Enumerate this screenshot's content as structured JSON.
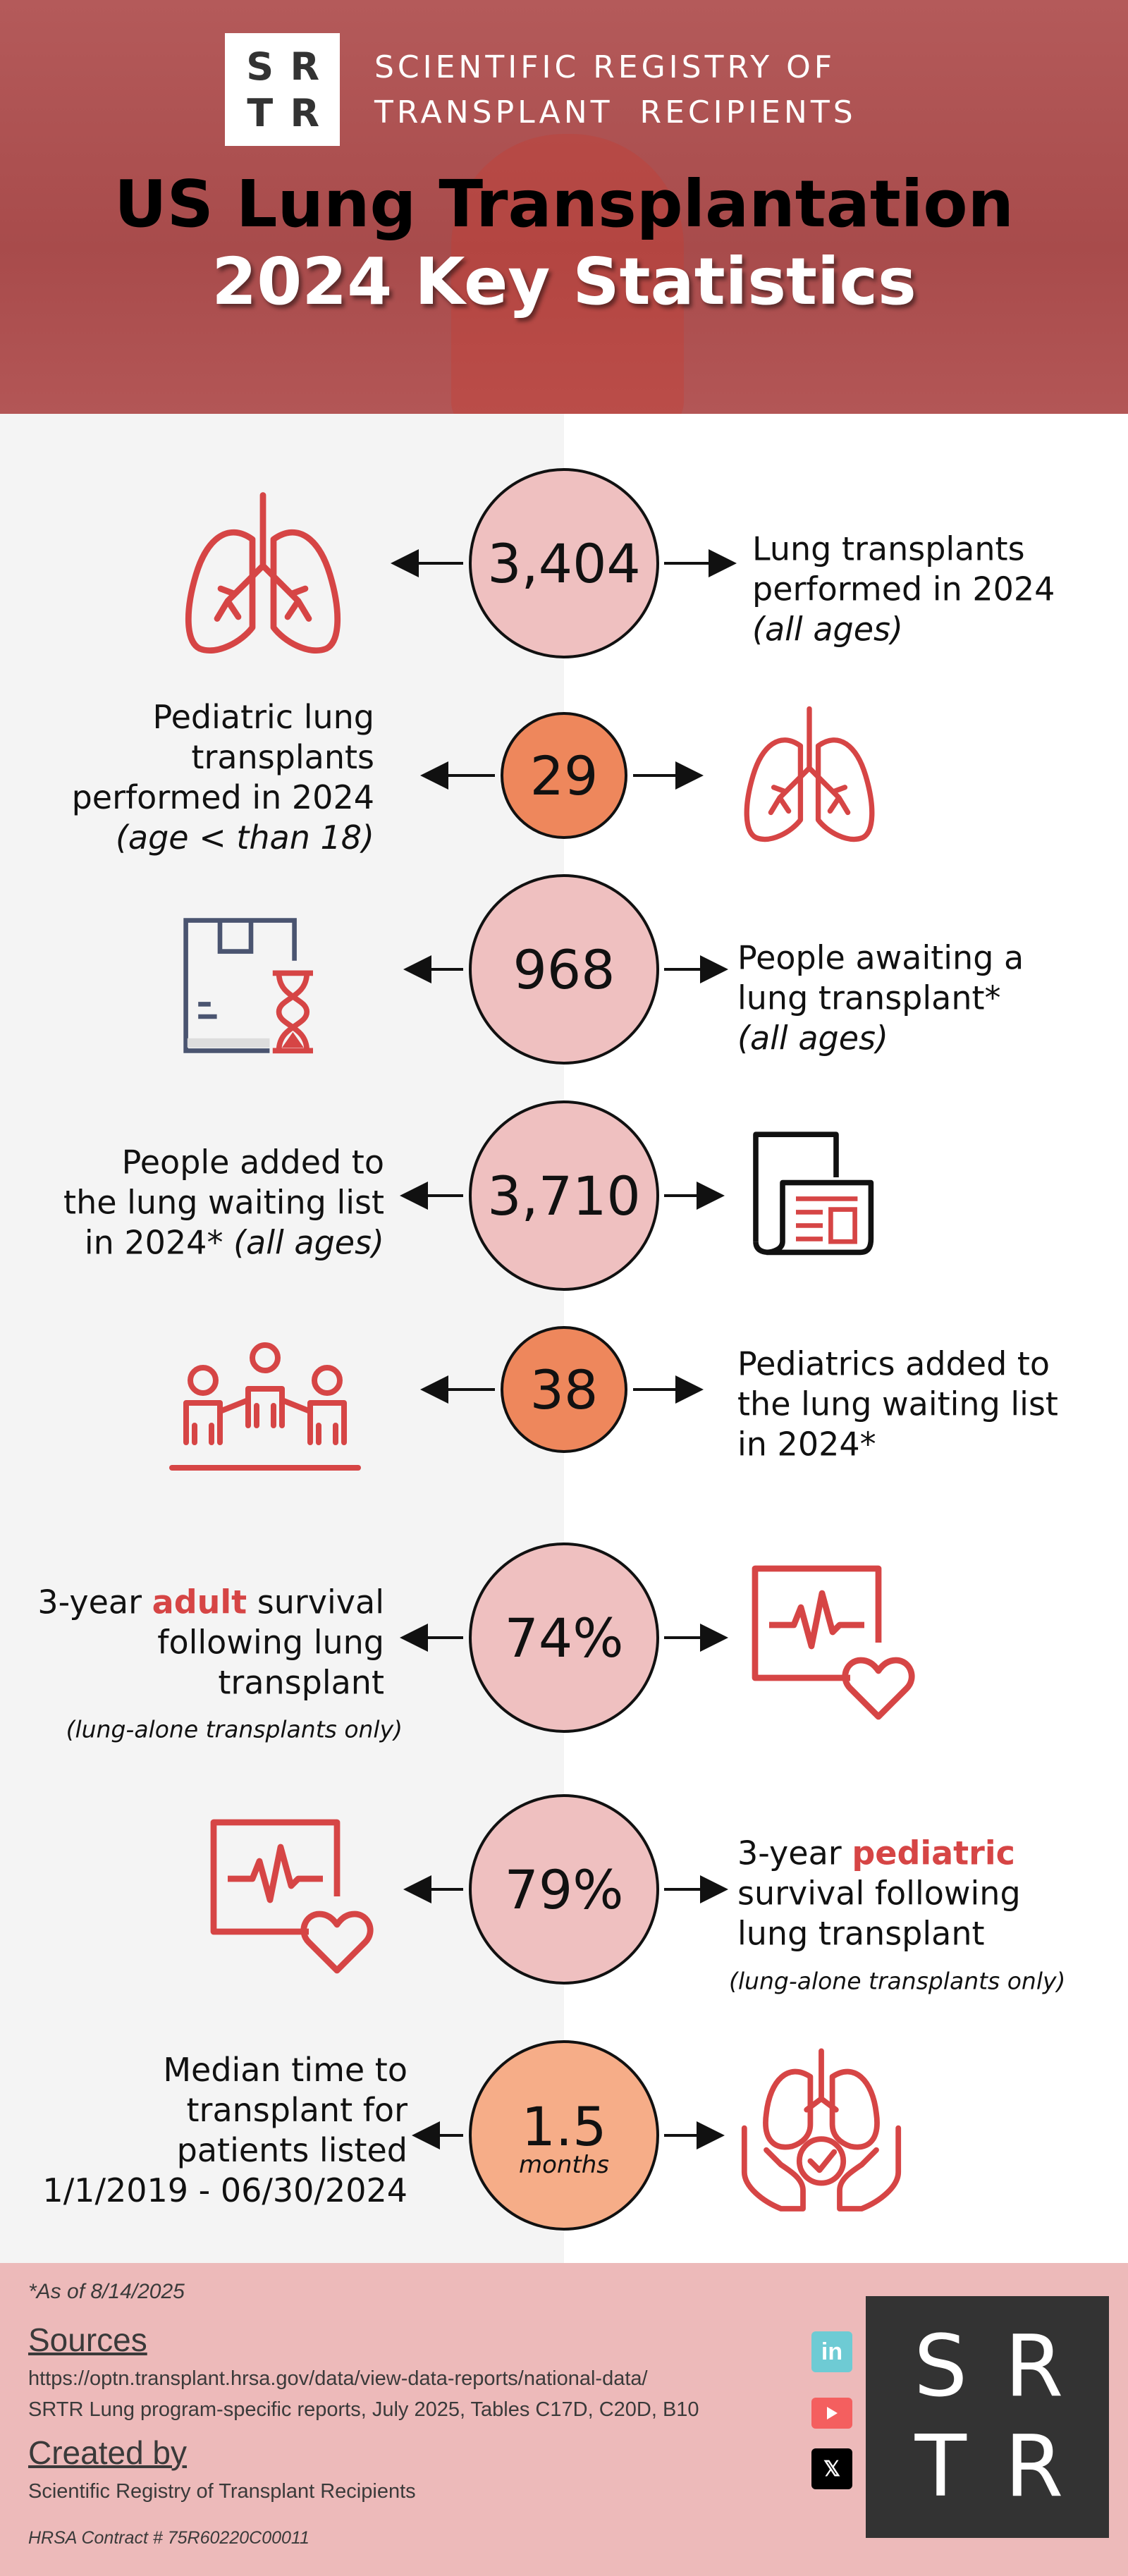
{
  "header": {
    "logo_letters": [
      "S",
      "R",
      "T",
      "R"
    ],
    "org_line1": "SCIENTIFIC REGISTRY OF",
    "org_line2": "TRANSPLANT  RECIPIENTS",
    "title_line1": "US Lung Transplantation",
    "title_line2": "2024 Key Statistics"
  },
  "colors": {
    "header_bg": "#a84b4b",
    "circle_pink": "#efc0c0",
    "circle_orange": "#ee875c",
    "circle_peach": "#f6ad88",
    "icon_red": "#d64545",
    "footer_bg": "#edbaba"
  },
  "stats": [
    {
      "value": "3,404",
      "text": [
        "Lung transplants",
        "performed in 2024"
      ],
      "note": "(all ages)",
      "icon": "lungs-icon"
    },
    {
      "value": "29",
      "text": [
        "Pediatric lung",
        "transplants",
        "performed in 2024"
      ],
      "note": "(age < than 18)",
      "icon": "lungs-icon"
    },
    {
      "value": "968",
      "text": [
        "People awaiting a",
        "lung transplant*"
      ],
      "note": "(all ages)",
      "icon": "box-hourglass-icon"
    },
    {
      "value": "3,710",
      "text": [
        "People added to",
        "the lung waiting list",
        "in 2024*"
      ],
      "note": "(all ages)",
      "icon": "document-list-icon"
    },
    {
      "value": "38",
      "text": [
        "Pediatrics added to",
        "the lung waiting list",
        "in 2024*"
      ],
      "icon": "people-group-icon"
    },
    {
      "value": "74%",
      "text_pre": "3-year ",
      "text_em": "adult",
      "text_post": " survival",
      "text": [
        "following lung",
        "transplant"
      ],
      "note": "(lung-alone transplants only)",
      "icon": "heart-monitor-icon"
    },
    {
      "value": "79%",
      "text_pre": "3-year ",
      "text_em": "pediatric",
      "text": [
        "survival following",
        "lung transplant"
      ],
      "note": "(lung-alone transplants only)",
      "icon": "heart-monitor-icon"
    },
    {
      "value": "1.5",
      "unit": "months",
      "text": [
        "Median time to",
        "transplant for",
        "patients listed",
        "1/1/2019 - 06/30/2024"
      ],
      "icon": "lungs-hands-icon"
    }
  ],
  "footer": {
    "as_of": "*As of 8/14/2025",
    "sources_heading": "Sources",
    "sources": [
      "https://optn.transplant.hrsa.gov/data/view-data-reports/national-data/",
      "SRTR Lung program-specific reports, July 2025, Tables C17D, C20D, B10"
    ],
    "created_heading": "Created by",
    "created_by": "Scientific Registry of Transplant Recipients",
    "contract": "HRSA Contract # 75R60220C00011",
    "social": [
      {
        "icon": "linkedin-icon",
        "label": "in",
        "color": "#6ecbd4"
      },
      {
        "icon": "youtube-icon",
        "color": "#f45f5f"
      },
      {
        "icon": "x-icon",
        "label": "𝕏",
        "color": "#000000"
      }
    ]
  }
}
